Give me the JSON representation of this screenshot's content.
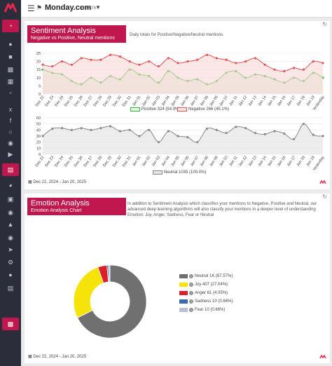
{
  "topbar": {
    "brand": "Monday.com",
    "code": "R50674"
  },
  "sentiment": {
    "title": "Sentiment Analysis",
    "subtitle": "Negative vs Positive, Neutral mentions",
    "description": "Daily totals for Positive/Negative/Neutral mentions.",
    "date_range": "Dec 22, 2024 - Jan 20, 2025"
  },
  "emotion": {
    "title": "Emotion Analysis",
    "subtitle": "Emotion Analysis Chart",
    "description": "In addition to Sentiment Analysis which classifies your mentions to Negative, Positive and Neutral, our advanced deep learning algorithms will also classify your mentions in a deeper level of understanding Emotion: Joy, Anger, Sadness, Fear or Neutral",
    "date_range": "Dec 22, 2024 - Jan 20, 2025"
  },
  "chart_data": [
    {
      "type": "area",
      "categories": [
        "Dec 22",
        "Dec 23",
        "Dec 24",
        "Dec 25",
        "Dec 26",
        "Dec 27",
        "Dec 28",
        "Dec 29",
        "Dec 30",
        "Dec 31",
        "Jan 01",
        "Jan 02",
        "Jan 03",
        "Jan 04",
        "Jan 05",
        "Jan 06",
        "Jan 07",
        "Jan 08",
        "Jan 09",
        "Jan 10",
        "Jan 11",
        "Jan 12",
        "Jan 13",
        "Jan 14",
        "Jan 15",
        "Jan 16",
        "Jan 17",
        "Jan 18",
        "Jan 19",
        "Yesterday"
      ],
      "yticks": [
        0,
        5,
        10,
        15,
        20,
        25
      ],
      "ylim": [
        0,
        25
      ],
      "series": [
        {
          "name": "Positive 324 (54.9%)",
          "color": "#2eb82e",
          "values": [
            15,
            13,
            12,
            8,
            6,
            10,
            7,
            11,
            9,
            15,
            12,
            11,
            7,
            14,
            10,
            8,
            9,
            6,
            8,
            13,
            14,
            10,
            12,
            11,
            9,
            7,
            10,
            8,
            13,
            10
          ]
        },
        {
          "name": "Negative 266 (45.1%)",
          "color": "#e05555",
          "values": [
            18,
            17,
            20,
            18,
            22,
            21,
            21,
            24,
            23,
            20,
            18,
            20,
            17,
            22,
            19,
            20,
            21,
            24,
            22,
            21,
            19,
            20,
            22,
            18,
            15,
            14,
            16,
            15,
            20,
            19
          ]
        }
      ]
    },
    {
      "type": "line",
      "categories": [
        "Dec 22",
        "Dec 23",
        "Dec 24",
        "Dec 25",
        "Dec 26",
        "Dec 27",
        "Dec 28",
        "Dec 29",
        "Dec 30",
        "Dec 31",
        "Jan 01",
        "Jan 02",
        "Jan 03",
        "Jan 04",
        "Jan 05",
        "Jan 06",
        "Jan 07",
        "Jan 08",
        "Jan 09",
        "Jan 10",
        "Jan 11",
        "Jan 12",
        "Jan 13",
        "Jan 14",
        "Jan 15",
        "Jan 16",
        "Jan 17",
        "Jan 18",
        "Jan 19",
        "Yesterday"
      ],
      "yticks": [
        0,
        10,
        20,
        30,
        40,
        50,
        60
      ],
      "ylim": [
        0,
        60
      ],
      "series": [
        {
          "name": "Neutral 1035 (100.0%)",
          "color": "#888888",
          "values": [
            30,
            42,
            43,
            40,
            43,
            40,
            43,
            46,
            38,
            40,
            30,
            40,
            20,
            38,
            30,
            28,
            20,
            42,
            40,
            35,
            45,
            43,
            35,
            33,
            38,
            34,
            25,
            50,
            32,
            30
          ]
        }
      ]
    },
    {
      "type": "pie",
      "categories": [
        "Neutral 1K (67.57%)",
        "Joy 407 (27.04%)",
        "Anger 61 (4.05%)",
        "Sadness 10 (0.66%)",
        "Fear 10 (0.66%)"
      ],
      "values": [
        67.57,
        27.04,
        4.05,
        0.66,
        0.66
      ],
      "colors": [
        "#707070",
        "#f5e30a",
        "#dd1f2a",
        "#3a6ab0",
        "#b8bfd6"
      ]
    }
  ]
}
